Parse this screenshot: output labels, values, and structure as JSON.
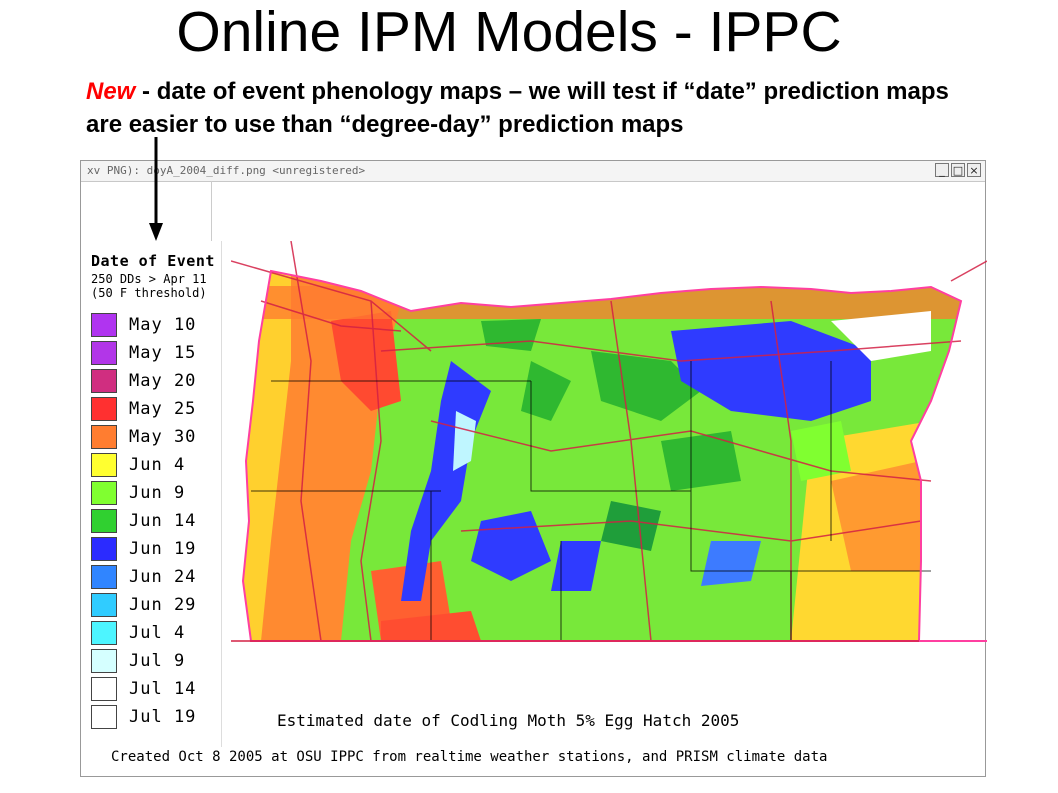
{
  "slide": {
    "title": "Online IPM Models - IPPC",
    "subtitle_new": "New",
    "subtitle_rest": " - date of event phenology maps – we will test if “date” prediction maps are easier to use than “degree-day” prediction maps"
  },
  "window": {
    "title": "xv  PNG): doyA_2004_diff.png <unregistered>",
    "minimize_glyph": "_",
    "maximize_glyph": "□",
    "close_glyph": "×"
  },
  "legend": {
    "title": "Date of Event",
    "line1": "250 DDs > Apr 11",
    "line2": "(50 F threshold)",
    "items": [
      {
        "label": "May 10",
        "color": "#b034f0"
      },
      {
        "label": "May 15",
        "color": "#b236e8"
      },
      {
        "label": "May 20",
        "color": "#d02e80"
      },
      {
        "label": "May 25",
        "color": "#ff3030"
      },
      {
        "label": "May 30",
        "color": "#ff7d30"
      },
      {
        "label": "Jun 4",
        "color": "#ffff30"
      },
      {
        "label": "Jun 9",
        "color": "#80ff30"
      },
      {
        "label": "Jun 14",
        "color": "#30d030"
      },
      {
        "label": "Jun 19",
        "color": "#2b2bff"
      },
      {
        "label": "Jun 24",
        "color": "#3085ff"
      },
      {
        "label": "Jun 29",
        "color": "#30ccff"
      },
      {
        "label": "Jul 4",
        "color": "#4df5ff"
      },
      {
        "label": "Jul 9",
        "color": "#d5ffff"
      },
      {
        "label": "Jul 14",
        "color": "#ffffff"
      },
      {
        "label": "Jul 19",
        "color": "#ffffff"
      }
    ]
  },
  "map": {
    "caption": "Estimated date of Codling Moth 5% Egg Hatch 2005",
    "footer": "Created Oct 8 2005 at OSU IPPC from  realtime weather stations, and PRISM climate data"
  }
}
